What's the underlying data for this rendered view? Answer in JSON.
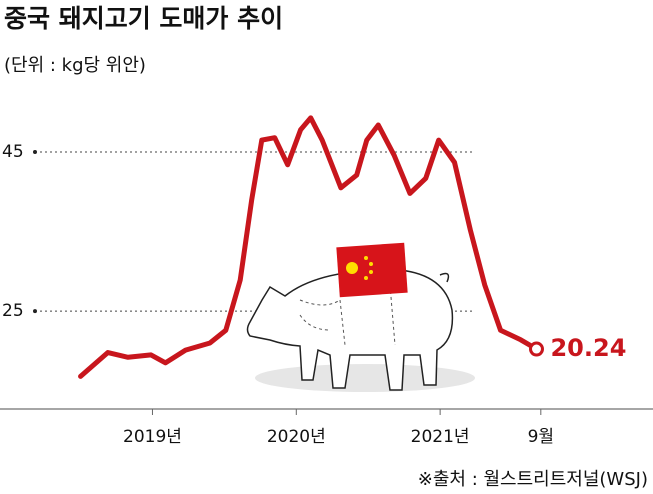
{
  "chart_data": {
    "type": "line",
    "title": "중국 돼지고기 도매가 추이",
    "subtitle": "(단위 : kg당 위안)",
    "source": "※출처 : 월스트리트저널(WSJ)",
    "x": [
      2018.5,
      2018.69,
      2018.83,
      2018.99,
      2019.09,
      2019.23,
      2019.4,
      2019.51,
      2019.61,
      2019.69,
      2019.76,
      2019.85,
      2019.94,
      2020.03,
      2020.1,
      2020.18,
      2020.31,
      2020.42,
      2020.49,
      2020.57,
      2020.68,
      2020.79,
      2020.9,
      2020.99,
      2021.1,
      2021.21,
      2021.31,
      2021.42,
      2021.56,
      2021.67
    ],
    "values": [
      16.8,
      19.8,
      19.2,
      19.5,
      18.5,
      20.1,
      21.0,
      22.6,
      28.9,
      39.0,
      46.5,
      46.8,
      43.4,
      47.8,
      49.3,
      46.5,
      40.5,
      42.1,
      46.5,
      48.4,
      44.6,
      39.8,
      41.7,
      46.5,
      43.7,
      35.2,
      28.3,
      22.6,
      21.4,
      20.24
    ],
    "color": "#c8161d",
    "label_last": true,
    "xlim": [
      2017.94,
      2022.48
    ],
    "xticks": [
      {
        "value": 2019,
        "label": "2019년"
      },
      {
        "value": 2020,
        "label": "2020년"
      },
      {
        "value": 2021,
        "label": "2021년"
      },
      {
        "value": 2021.7,
        "label": "9월"
      }
    ],
    "ylim": [
      12.7,
      52
    ],
    "yticks": [
      25,
      45
    ],
    "grid": true
  }
}
